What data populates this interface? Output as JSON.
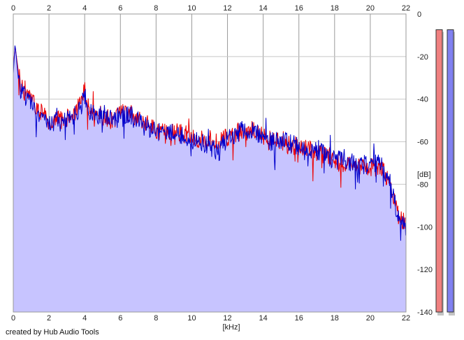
{
  "chart_data": {
    "type": "area",
    "xlabel": "[kHz]",
    "ylabel": "[dB]",
    "xlim": [
      0,
      22
    ],
    "ylim": [
      -140,
      0
    ],
    "x_ticks": [
      0,
      2,
      4,
      6,
      8,
      10,
      12,
      14,
      16,
      18,
      20,
      22
    ],
    "y_ticks": [
      0,
      -20,
      -40,
      -60,
      -80,
      -100,
      -120,
      -140
    ],
    "y_tick_labels": [
      "0",
      "-20",
      "-40",
      "-60",
      "-80",
      "-100",
      "-120",
      "-140"
    ],
    "grid": true,
    "fill_color": "#c7c4ff",
    "series": [
      {
        "color": "#ee0000",
        "x": [
          0,
          0.1,
          0.3,
          0.5,
          0.8,
          1.0,
          1.5,
          2.0,
          2.5,
          3.0,
          3.5,
          3.8,
          4.0,
          4.2,
          4.5,
          5.0,
          5.5,
          6.0,
          6.5,
          7.0,
          7.5,
          8.0,
          8.5,
          9.0,
          9.5,
          10.0,
          10.5,
          11.0,
          11.5,
          12.0,
          12.5,
          13.0,
          13.5,
          14.0,
          14.5,
          15.0,
          15.5,
          16.0,
          16.5,
          17.0,
          17.5,
          18.0,
          18.5,
          19.0,
          19.5,
          20.0,
          20.5,
          21.0,
          21.3,
          21.6,
          21.9,
          22.0
        ],
        "values": [
          -25,
          -15,
          -28,
          -35,
          -38,
          -40,
          -46,
          -50,
          -50,
          -49,
          -46,
          -42,
          -32,
          -44,
          -46,
          -48,
          -50,
          -47,
          -46,
          -50,
          -52,
          -54,
          -56,
          -55,
          -56,
          -58,
          -59,
          -59,
          -60,
          -58,
          -56,
          -55,
          -55,
          -57,
          -60,
          -60,
          -62,
          -62,
          -64,
          -65,
          -66,
          -68,
          -70,
          -70,
          -72,
          -72,
          -72,
          -77,
          -85,
          -95,
          -98,
          -100
        ]
      },
      {
        "color": "#0000cc",
        "x": [
          0,
          0.1,
          0.3,
          0.5,
          0.8,
          1.0,
          1.5,
          2.0,
          2.5,
          3.0,
          3.5,
          3.8,
          4.0,
          4.2,
          4.5,
          5.0,
          5.5,
          6.0,
          6.5,
          7.0,
          7.5,
          8.0,
          8.5,
          9.0,
          9.5,
          10.0,
          10.5,
          11.0,
          11.5,
          12.0,
          12.5,
          13.0,
          13.5,
          14.0,
          14.5,
          15.0,
          15.5,
          16.0,
          16.5,
          17.0,
          17.5,
          18.0,
          18.5,
          19.0,
          19.5,
          20.0,
          20.5,
          21.0,
          21.3,
          21.6,
          21.9,
          22.0
        ],
        "values": [
          -28,
          -14,
          -32,
          -38,
          -40,
          -42,
          -48,
          -52,
          -51,
          -50,
          -47,
          -44,
          -38,
          -45,
          -47,
          -48,
          -49,
          -48,
          -47,
          -50,
          -53,
          -55,
          -56,
          -55,
          -57,
          -60,
          -60,
          -62,
          -65,
          -58,
          -56,
          -54,
          -55,
          -58,
          -60,
          -59,
          -61,
          -62,
          -63,
          -64,
          -65,
          -67,
          -69,
          -70,
          -71,
          -70,
          -70,
          -76,
          -86,
          -96,
          -99,
          -102
        ]
      }
    ],
    "level_meters": [
      {
        "color": "#f08080",
        "level": 0.97
      },
      {
        "color": "#8080f0",
        "level": 0.97
      }
    ],
    "credit": "created by Hub Audio Tools"
  }
}
